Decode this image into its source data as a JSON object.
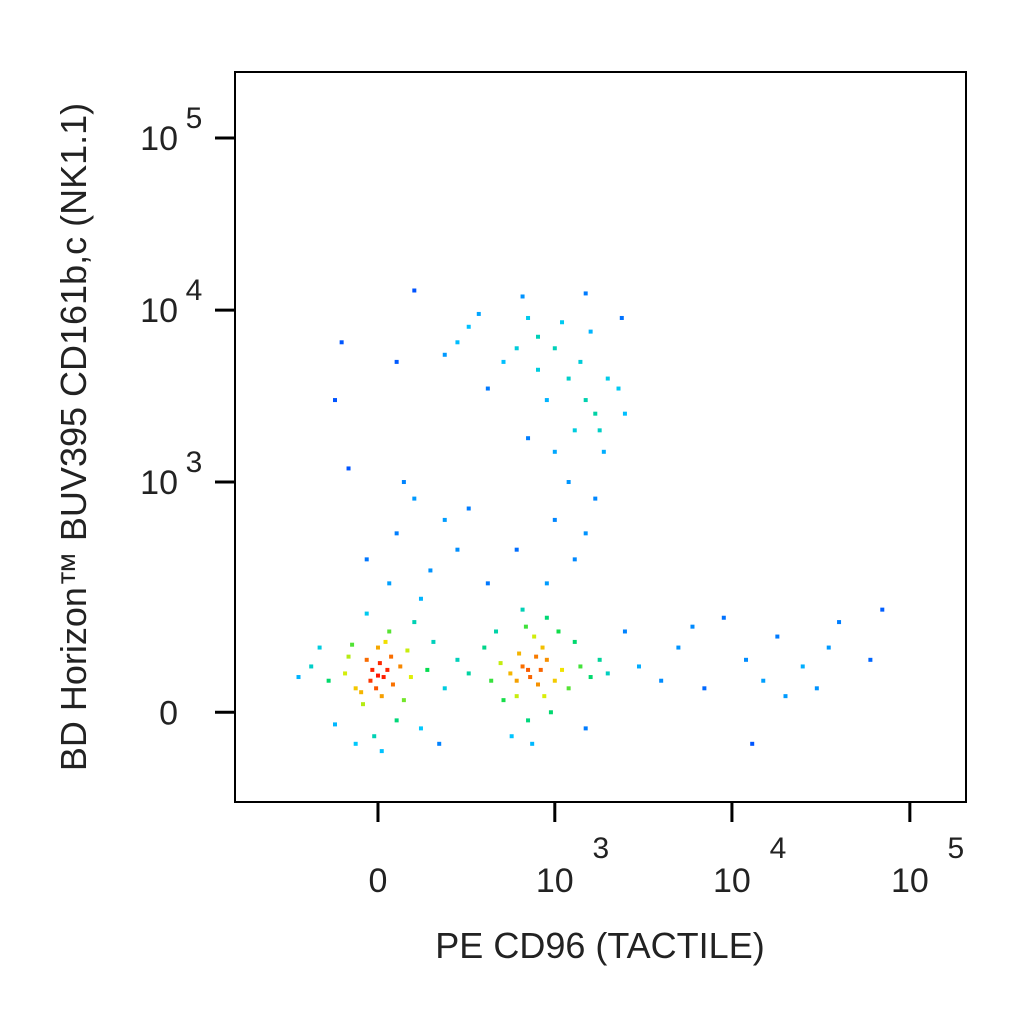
{
  "chart_data": {
    "type": "scatter",
    "x_label": "PE  CD96 (TACTILE)",
    "y_label": "BD Horizon™ BUV395 CD161b,c (NK1.1)",
    "x_scale": "logicle",
    "y_scale": "logicle",
    "xlim": [
      -636,
      206800
    ],
    "ylim": [
      -139,
      242000
    ],
    "xticks": [
      0,
      {
        "value": 1000,
        "label": "10",
        "exponent": "3"
      },
      {
        "value": 10000,
        "label": "10",
        "exponent": "4"
      },
      {
        "value": 100000,
        "label": "10",
        "exponent": "5"
      }
    ],
    "yticks": [
      0,
      {
        "value": 1000,
        "label": "10",
        "exponent": "3"
      },
      {
        "value": 10000,
        "label": "10",
        "exponent": "4"
      },
      {
        "value": 100000,
        "label": "10",
        "exponent": "5"
      }
    ],
    "x": [
      0,
      -20,
      25,
      -60,
      60,
      10,
      -30,
      40,
      -90,
      90,
      -140,
      140,
      0,
      20,
      -40,
      50,
      -10,
      30,
      -70,
      80,
      -200,
      200,
      120,
      -120,
      5,
      -5,
      15,
      -15,
      35,
      -45,
      70,
      -80,
      160,
      -170,
      250,
      -250,
      100,
      -30,
      10,
      -60,
      300,
      180,
      720,
      650,
      800,
      550,
      900,
      600,
      850,
      700,
      1000,
      480,
      1100,
      760,
      680,
      950,
      500,
      620,
      830,
      1200,
      1400,
      420,
      380,
      1600,
      1800,
      740,
      560,
      1300,
      900,
      650,
      1050,
      870,
      780,
      700,
      600,
      2000,
      1500,
      450,
      3000,
      4000,
      5000,
      7000,
      9000,
      12000,
      15000,
      18000,
      20000,
      25000,
      30000,
      35000,
      40000,
      60000,
      70000,
      13000,
      2500,
      6000,
      600,
      700,
      800,
      500,
      300,
      250,
      1000,
      1200,
      1500,
      1700,
      1400,
      900,
      1300,
      1800,
      1600,
      2000,
      2300,
      2400,
      400,
      200,
      350,
      1100,
      650,
      1500,
      -100,
      -120,
      50,
      100,
      1900,
      1000,
      700,
      1200,
      2500,
      800,
      50,
      100,
      150,
      200,
      250,
      30,
      -30,
      120,
      300,
      1000,
      1300,
      900,
      1500,
      600,
      400,
      1700,
      -80,
      70
    ],
    "y": [
      47,
      40,
      55,
      30,
      60,
      20,
      70,
      35,
      50,
      45,
      40,
      55,
      90,
      100,
      10,
      -10,
      -30,
      120,
      95,
      85,
      60,
      30,
      -20,
      -15,
      65,
      30,
      45,
      55,
      75,
      25,
      15,
      75,
      100,
      90,
      70,
      45,
      140,
      160,
      -50,
      -40,
      50,
      -40,
      45,
      60,
      35,
      50,
      70,
      20,
      90,
      -10,
      40,
      65,
      55,
      110,
      130,
      0,
      15,
      80,
      55,
      30,
      60,
      40,
      90,
      45,
      70,
      -40,
      -30,
      100,
      150,
      170,
      120,
      20,
      75,
      55,
      40,
      50,
      -20,
      120,
      60,
      40,
      90,
      30,
      150,
      70,
      40,
      110,
      20,
      60,
      30,
      90,
      140,
      70,
      170,
      -40,
      120,
      130,
      6000,
      9000,
      7000,
      5000,
      8000,
      6500,
      6000,
      4000,
      3000,
      2500,
      5000,
      3000,
      2000,
      2000,
      7500,
      4000,
      3500,
      9000,
      3500,
      5500,
      9500,
      8500,
      12000,
      12500,
      6500,
      3000,
      5000,
      13000,
      1500,
      1500,
      1800,
      1000,
      2500,
      4500,
      500,
      800,
      300,
      600,
      400,
      250,
      350,
      200,
      700,
      600,
      350,
      250,
      500,
      400,
      250,
      800,
      1200,
      1000
    ]
  }
}
